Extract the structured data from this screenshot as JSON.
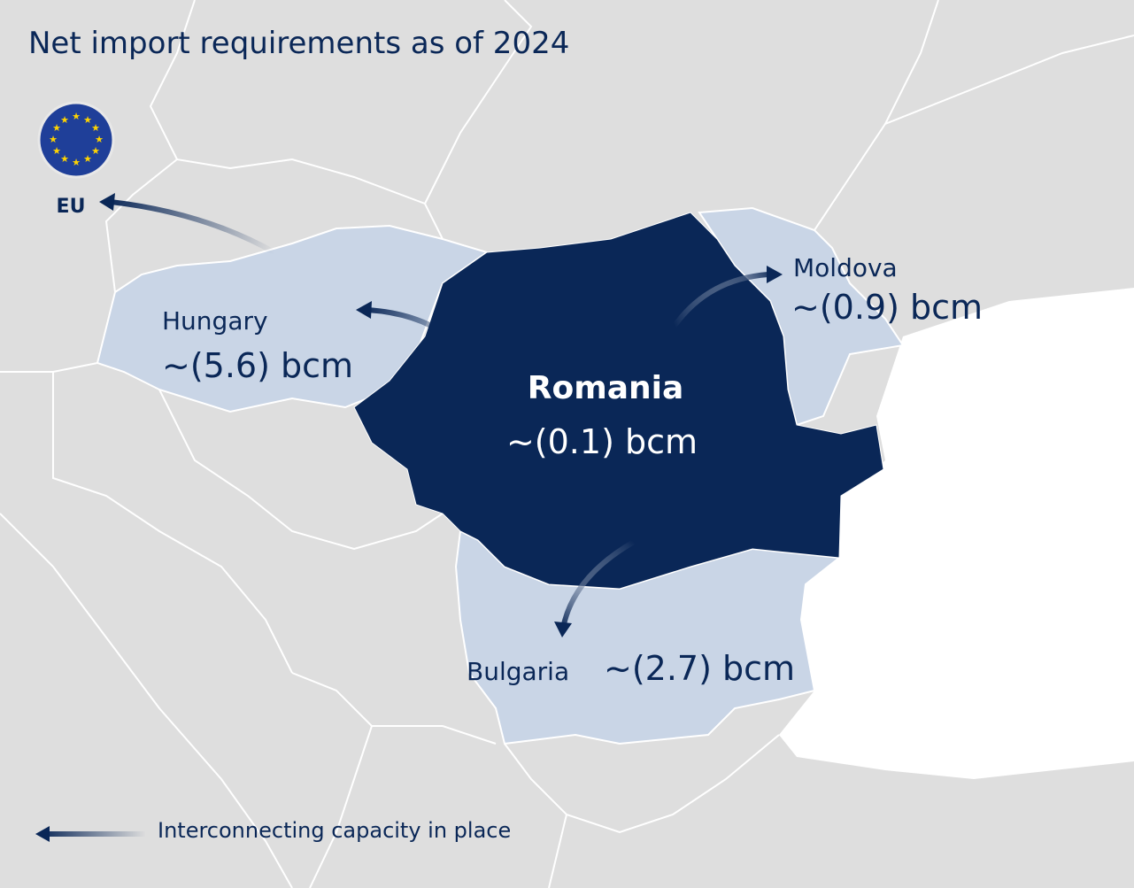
{
  "title": "Net import requirements as of 2024",
  "eu": {
    "label": "EU"
  },
  "regions": [
    {
      "name": "Romania",
      "value": "~(0.1) bcm"
    },
    {
      "name": "Hungary",
      "value": "~(5.6) bcm"
    },
    {
      "name": "Moldova",
      "value": "~(0.9) bcm"
    },
    {
      "name": "Bulgaria",
      "value": "~(2.7) bcm"
    }
  ],
  "legend": {
    "label": "Interconnecting capacity in place"
  }
}
